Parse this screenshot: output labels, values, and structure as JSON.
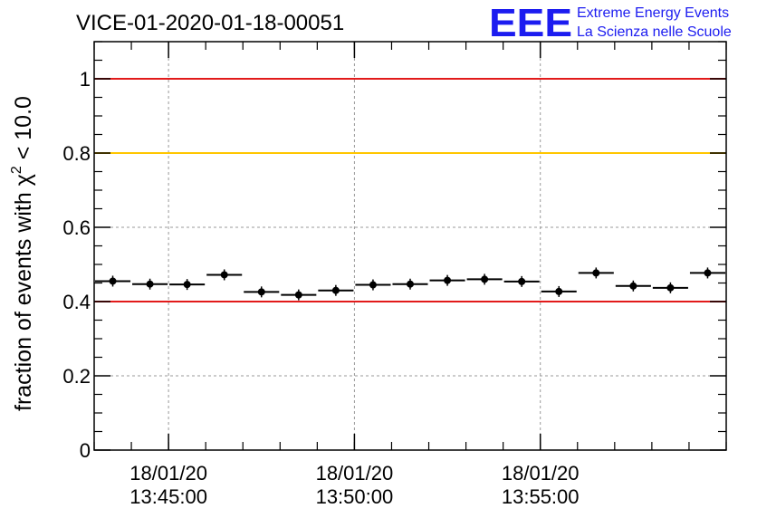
{
  "chart_data": {
    "type": "scatter",
    "title": "VICE-01-2020-01-18-00051",
    "ylabel_prefix": "fraction of events with ",
    "ylabel_symbol": "χ",
    "ylabel_exponent": "2",
    "ylabel_suffix": " < 10.0",
    "xlabel": "",
    "ylim": [
      0,
      1.1
    ],
    "yticks": [
      "0",
      "0.2",
      "0.4",
      "0.6",
      "0.8",
      "1"
    ],
    "xlim_minutes": [
      0,
      17
    ],
    "xticks": [
      {
        "minute": 2,
        "date": "18/01/20",
        "time": "13:45:00"
      },
      {
        "minute": 7,
        "date": "18/01/20",
        "time": "13:50:00"
      },
      {
        "minute": 12,
        "date": "18/01/20",
        "time": "13:55:00"
      }
    ],
    "reference_lines": [
      {
        "value": 1.0,
        "color": "#e21b1b"
      },
      {
        "value": 0.8,
        "color": "#ffc600"
      },
      {
        "value": 0.4,
        "color": "#e21b1b"
      }
    ],
    "points": [
      {
        "x_start": 0.0,
        "x_end": 1.0,
        "value": 0.455
      },
      {
        "x_start": 1.0,
        "x_end": 2.0,
        "value": 0.447
      },
      {
        "x_start": 2.0,
        "x_end": 3.0,
        "value": 0.446
      },
      {
        "x_start": 3.0,
        "x_end": 4.0,
        "value": 0.472
      },
      {
        "x_start": 4.0,
        "x_end": 5.0,
        "value": 0.426
      },
      {
        "x_start": 5.0,
        "x_end": 6.0,
        "value": 0.418
      },
      {
        "x_start": 6.0,
        "x_end": 7.0,
        "value": 0.43
      },
      {
        "x_start": 7.0,
        "x_end": 8.0,
        "value": 0.445
      },
      {
        "x_start": 8.0,
        "x_end": 9.0,
        "value": 0.447
      },
      {
        "x_start": 9.0,
        "x_end": 10.0,
        "value": 0.457
      },
      {
        "x_start": 10.0,
        "x_end": 11.0,
        "value": 0.46
      },
      {
        "x_start": 11.0,
        "x_end": 12.0,
        "value": 0.454
      },
      {
        "x_start": 12.0,
        "x_end": 13.0,
        "value": 0.427
      },
      {
        "x_start": 13.0,
        "x_end": 14.0,
        "value": 0.477
      },
      {
        "x_start": 14.0,
        "x_end": 15.0,
        "value": 0.442
      },
      {
        "x_start": 15.0,
        "x_end": 16.0,
        "value": 0.437
      },
      {
        "x_start": 16.0,
        "x_end": 17.0,
        "value": 0.477
      }
    ]
  },
  "logo": {
    "mark": "EEE",
    "line1": "Extreme Energy Events",
    "line2": "La Scienza nelle Scuole",
    "color": "#1c1cf0"
  }
}
